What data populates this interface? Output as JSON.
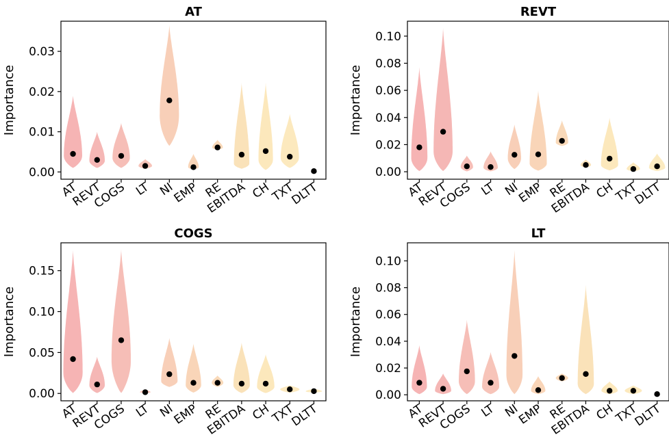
{
  "figure": {
    "ylabel": "Importance"
  },
  "chart_data": [
    {
      "type": "violin",
      "title": "AT",
      "xlabel": "",
      "ylabel": "Importance",
      "ylim": [
        -0.0018,
        0.0375
      ],
      "yticks": [
        0.0,
        0.01,
        0.02,
        0.03
      ],
      "yticklabels": [
        "0.00",
        "0.01",
        "0.02",
        "0.03"
      ],
      "categories": [
        "AT",
        "REVT",
        "COGS",
        "LT",
        "NI",
        "EMP",
        "RE",
        "EBITDA",
        "CH",
        "TXT",
        "DLTT"
      ],
      "series": [
        {
          "values": [
            0.0045,
            0.003,
            0.004,
            0.0015,
            0.0178,
            0.0012,
            0.0061,
            0.0043,
            0.0052,
            0.0038,
            0.0002
          ],
          "min": [
            0.001,
            0.001,
            0.001,
            0.0008,
            0.0065,
            0.0006,
            0.0055,
            0.0008,
            0.0005,
            0.001,
            0.0
          ],
          "max": [
            0.019,
            0.01,
            0.0122,
            0.0032,
            0.0365,
            0.0045,
            0.008,
            0.0222,
            0.0222,
            0.0145,
            0.0004
          ],
          "mode": [
            0.004,
            0.0028,
            0.0035,
            0.0015,
            0.014,
            0.0012,
            0.0061,
            0.002,
            0.003,
            0.0035,
            0.0002
          ],
          "maxwidth": [
            0.38,
            0.32,
            0.36,
            0.28,
            0.4,
            0.22,
            0.22,
            0.32,
            0.3,
            0.38,
            0.1
          ]
        }
      ]
    },
    {
      "type": "violin",
      "title": "REVT",
      "xlabel": "",
      "ylabel": "Importance",
      "ylim": [
        -0.0055,
        0.111
      ],
      "yticks": [
        0.0,
        0.02,
        0.04,
        0.06,
        0.08,
        0.1
      ],
      "yticklabels": [
        "0.00",
        "0.02",
        "0.04",
        "0.06",
        "0.08",
        "0.10"
      ],
      "categories": [
        "AT",
        "REVT",
        "COGS",
        "LT",
        "NI",
        "EMP",
        "RE",
        "EBITDA",
        "CH",
        "TXT",
        "DLTT"
      ],
      "series": [
        {
          "values": [
            0.018,
            0.0295,
            0.004,
            0.0035,
            0.0125,
            0.0128,
            0.0228,
            0.005,
            0.0097,
            0.002,
            0.004
          ],
          "min": [
            0.0005,
            0.0005,
            0.0003,
            0.0003,
            0.002,
            0.0008,
            0.019,
            0.003,
            0.001,
            0.0003,
            0.0005
          ],
          "max": [
            0.077,
            0.106,
            0.012,
            0.015,
            0.035,
            0.06,
            0.038,
            0.009,
            0.04,
            0.007,
            0.0135
          ],
          "mode": [
            0.01,
            0.015,
            0.0035,
            0.003,
            0.01,
            0.006,
            0.0215,
            0.005,
            0.005,
            0.002,
            0.003
          ],
          "maxwidth": [
            0.34,
            0.4,
            0.26,
            0.3,
            0.28,
            0.36,
            0.26,
            0.22,
            0.36,
            0.28,
            0.34
          ]
        }
      ]
    },
    {
      "type": "violin",
      "title": "COGS",
      "xlabel": "",
      "ylabel": "Importance",
      "ylim": [
        -0.009,
        0.184
      ],
      "yticks": [
        0.0,
        0.05,
        0.1,
        0.15
      ],
      "yticklabels": [
        "0.00",
        "0.05",
        "0.10",
        "0.15"
      ],
      "categories": [
        "AT",
        "REVT",
        "COGS",
        "LT",
        "NI",
        "EMP",
        "RE",
        "EBITDA",
        "CH",
        "TXT",
        "DLTT"
      ],
      "series": [
        {
          "values": [
            0.042,
            0.011,
            0.065,
            0.0015,
            0.0235,
            0.013,
            0.013,
            0.012,
            0.012,
            0.005,
            0.0028
          ],
          "min": [
            0.0005,
            0.0005,
            0.0005,
            0.0003,
            0.008,
            0.001,
            0.008,
            0.0005,
            0.0005,
            0.001,
            0.001
          ],
          "max": [
            0.175,
            0.045,
            0.176,
            0.005,
            0.068,
            0.061,
            0.022,
            0.062,
            0.048,
            0.01,
            0.006
          ],
          "mode": [
            0.025,
            0.01,
            0.04,
            0.0015,
            0.015,
            0.01,
            0.013,
            0.01,
            0.008,
            0.005,
            0.0025
          ],
          "maxwidth": [
            0.4,
            0.32,
            0.4,
            0.22,
            0.34,
            0.32,
            0.24,
            0.34,
            0.36,
            0.4,
            0.34
          ]
        }
      ]
    },
    {
      "type": "violin",
      "title": "LT",
      "xlabel": "",
      "ylabel": "Importance",
      "ylim": [
        -0.0045,
        0.1135
      ],
      "yticks": [
        0.0,
        0.02,
        0.04,
        0.06,
        0.08,
        0.1
      ],
      "yticklabels": [
        "0.00",
        "0.02",
        "0.04",
        "0.06",
        "0.08",
        "0.10"
      ],
      "categories": [
        "AT",
        "REVT",
        "COGS",
        "LT",
        "NI",
        "EMP",
        "RE",
        "EBITDA",
        "CH",
        "TXT",
        "DLTT"
      ],
      "series": [
        {
          "values": [
            0.009,
            0.0045,
            0.0175,
            0.009,
            0.029,
            0.0035,
            0.0125,
            0.0155,
            0.003,
            0.003,
            0.0005
          ],
          "min": [
            0.0005,
            0.0005,
            0.0005,
            0.0005,
            0.0005,
            0.0005,
            0.01,
            0.0005,
            0.0005,
            0.0005,
            0.0003
          ],
          "max": [
            0.037,
            0.016,
            0.056,
            0.032,
            0.108,
            0.014,
            0.016,
            0.082,
            0.01,
            0.007,
            0.001
          ],
          "mode": [
            0.006,
            0.003,
            0.01,
            0.006,
            0.015,
            0.003,
            0.0125,
            0.008,
            0.003,
            0.003,
            0.0005
          ],
          "maxwidth": [
            0.32,
            0.34,
            0.34,
            0.36,
            0.34,
            0.3,
            0.26,
            0.34,
            0.34,
            0.36,
            0.12
          ]
        }
      ]
    }
  ],
  "colors": [
    "#f4a1a1",
    "#f2a5a3",
    "#f4aea5",
    "#f5b5a8",
    "#f6c3a6",
    "#f7caa6",
    "#f8d0a7",
    "#f9dba8",
    "#fbe2ab",
    "#fbe4ae",
    "#fbe6b2"
  ],
  "point_color": "#000000"
}
